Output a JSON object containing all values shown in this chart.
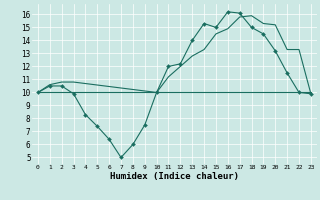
{
  "xlabel": "Humidex (Indice chaleur)",
  "xlim": [
    -0.5,
    23.5
  ],
  "ylim": [
    4.5,
    16.8
  ],
  "yticks": [
    5,
    6,
    7,
    8,
    9,
    10,
    11,
    12,
    13,
    14,
    15,
    16
  ],
  "xticks": [
    0,
    1,
    2,
    3,
    4,
    5,
    6,
    7,
    8,
    9,
    10,
    11,
    12,
    13,
    14,
    15,
    16,
    17,
    18,
    19,
    20,
    21,
    22,
    23
  ],
  "xtick_labels": [
    "0",
    "1",
    "2",
    "3",
    "4",
    "5",
    "6",
    "7",
    "8",
    "9",
    "10",
    "11",
    "12",
    "13",
    "14",
    "15",
    "16",
    "17",
    "18",
    "19",
    "20",
    "21",
    "22",
    "23"
  ],
  "bg_color": "#cce8e4",
  "line_color": "#1a6e60",
  "line1_x": [
    0,
    1,
    2,
    3,
    4,
    5,
    6,
    7,
    8,
    9,
    10,
    11,
    12,
    13,
    14,
    15,
    16,
    17,
    18,
    19,
    20,
    21,
    22,
    23
  ],
  "line1_y": [
    10.0,
    10.5,
    10.5,
    9.9,
    8.3,
    7.4,
    6.4,
    5.0,
    6.0,
    7.5,
    10.0,
    12.0,
    12.2,
    14.0,
    15.3,
    15.0,
    16.2,
    16.1,
    15.0,
    14.5,
    13.2,
    11.5,
    10.0,
    9.9
  ],
  "line2_x": [
    0,
    23
  ],
  "line2_y": [
    10.0,
    10.0
  ],
  "line3_x": [
    0,
    1,
    2,
    3,
    10,
    11,
    12,
    13,
    14,
    15,
    16,
    17,
    18,
    19,
    20,
    21,
    22,
    23
  ],
  "line3_y": [
    10.0,
    10.6,
    10.8,
    10.8,
    10.0,
    11.2,
    12.0,
    12.8,
    13.3,
    14.5,
    14.9,
    15.8,
    15.9,
    15.3,
    15.2,
    13.3,
    13.3,
    9.9
  ],
  "marker_style": "D",
  "marker_size": 2.0
}
